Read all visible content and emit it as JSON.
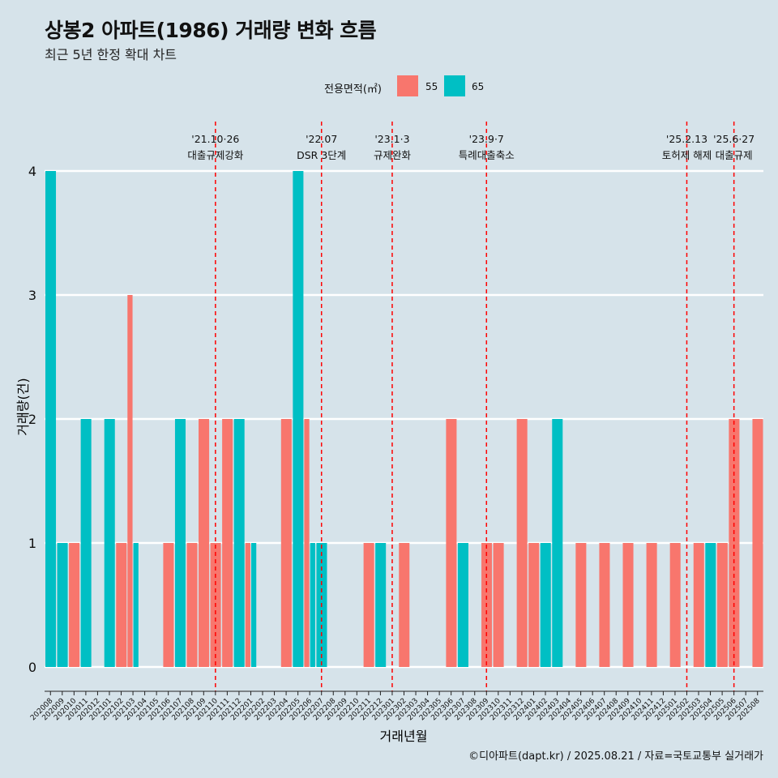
{
  "header": {
    "title": "상봉2 아파트(1986) 거래량 변화 흐름",
    "subtitle": "최근 5년 한정 확대 차트"
  },
  "legend": {
    "title": "전용면적(㎡)",
    "items": [
      {
        "label": "55",
        "color": "#F8766D"
      },
      {
        "label": "65",
        "color": "#00BFC4"
      }
    ]
  },
  "footer": {
    "credit": "©디아파트(dapt.kr) / 2025.08.21 / 자료=국토교통부 실거래가"
  },
  "chart_data": {
    "type": "bar",
    "xlabel": "거래년월",
    "ylabel": "거래량(건)",
    "ylim": [
      0,
      4
    ],
    "yticks": [
      0,
      1,
      2,
      3,
      4
    ],
    "grid": true,
    "legend_position": "top",
    "categories": [
      "202008",
      "202009",
      "202010",
      "202011",
      "202012",
      "202101",
      "202102",
      "202103",
      "202104",
      "202105",
      "202106",
      "202107",
      "202108",
      "202109",
      "202110",
      "202111",
      "202112",
      "202201",
      "202202",
      "202203",
      "202204",
      "202205",
      "202206",
      "202207",
      "202208",
      "202209",
      "202210",
      "202211",
      "202212",
      "202301",
      "202302",
      "202303",
      "202304",
      "202305",
      "202306",
      "202307",
      "202308",
      "202309",
      "202310",
      "202311",
      "202312",
      "202401",
      "202402",
      "202403",
      "202404",
      "202405",
      "202406",
      "202407",
      "202408",
      "202409",
      "202410",
      "202411",
      "202412",
      "202501",
      "202502",
      "202503",
      "202504",
      "202505",
      "202506",
      "202507",
      "202508"
    ],
    "series": [
      {
        "name": "55",
        "color": "#F8766D",
        "values": [
          0,
          0,
          1,
          0,
          0,
          0,
          1,
          3,
          0,
          0,
          1,
          0,
          1,
          2,
          1,
          2,
          0,
          1,
          0,
          0,
          2,
          0,
          2,
          0,
          0,
          0,
          0,
          1,
          0,
          0,
          1,
          0,
          0,
          0,
          2,
          0,
          0,
          1,
          1,
          0,
          2,
          1,
          0,
          0,
          0,
          1,
          0,
          1,
          0,
          1,
          0,
          1,
          0,
          1,
          0,
          1,
          0,
          1,
          2,
          0,
          2
        ]
      },
      {
        "name": "65",
        "color": "#00BFC4",
        "values": [
          4,
          1,
          0,
          2,
          0,
          2,
          0,
          1,
          0,
          0,
          0,
          2,
          0,
          0,
          0,
          0,
          2,
          1,
          0,
          0,
          0,
          4,
          1,
          1,
          0,
          0,
          0,
          0,
          1,
          0,
          0,
          0,
          0,
          0,
          0,
          1,
          0,
          0,
          0,
          0,
          0,
          0,
          1,
          2,
          0,
          0,
          0,
          0,
          0,
          0,
          0,
          0,
          0,
          0,
          0,
          0,
          1,
          0,
          0,
          0,
          0
        ]
      }
    ],
    "annotations": [
      {
        "x": "202110",
        "date": "'21.10·26",
        "label": "대출규제강화"
      },
      {
        "x": "202207",
        "date": "'22.07",
        "label": "DSR 3단계"
      },
      {
        "x": "202301",
        "date": "'23.1·3",
        "label": "규제완화"
      },
      {
        "x": "202309",
        "date": "'23.9·7",
        "label": "특례대출축소"
      },
      {
        "x": "202502",
        "date": "'25.2.13",
        "label": "토허제 해제"
      },
      {
        "x": "202506",
        "date": "'25.6·27",
        "label": "대출규제"
      }
    ]
  }
}
